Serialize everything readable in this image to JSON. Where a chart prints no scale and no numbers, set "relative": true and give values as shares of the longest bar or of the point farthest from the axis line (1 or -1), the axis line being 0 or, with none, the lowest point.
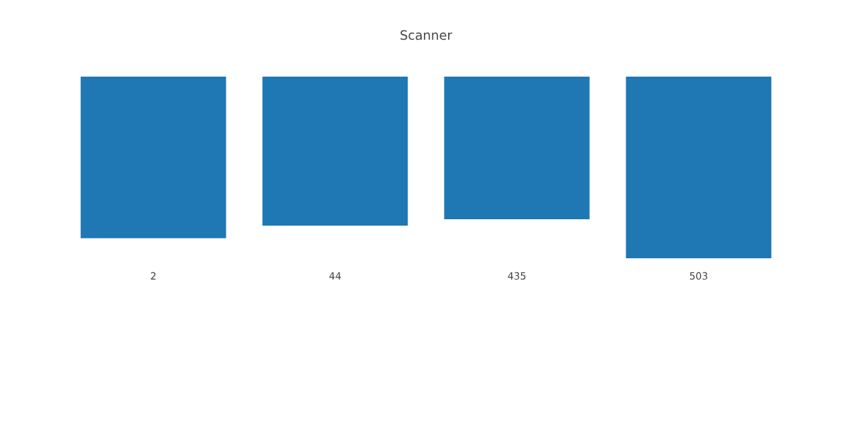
{
  "chart_data": {
    "type": "bar",
    "title": "Scanner",
    "categories": [
      "2",
      "44",
      "435",
      "503"
    ],
    "values": [
      -0.89,
      -0.82,
      -0.785,
      -1
    ],
    "color": "#1f77b4",
    "relative": true,
    "grid": false,
    "legend": false
  }
}
